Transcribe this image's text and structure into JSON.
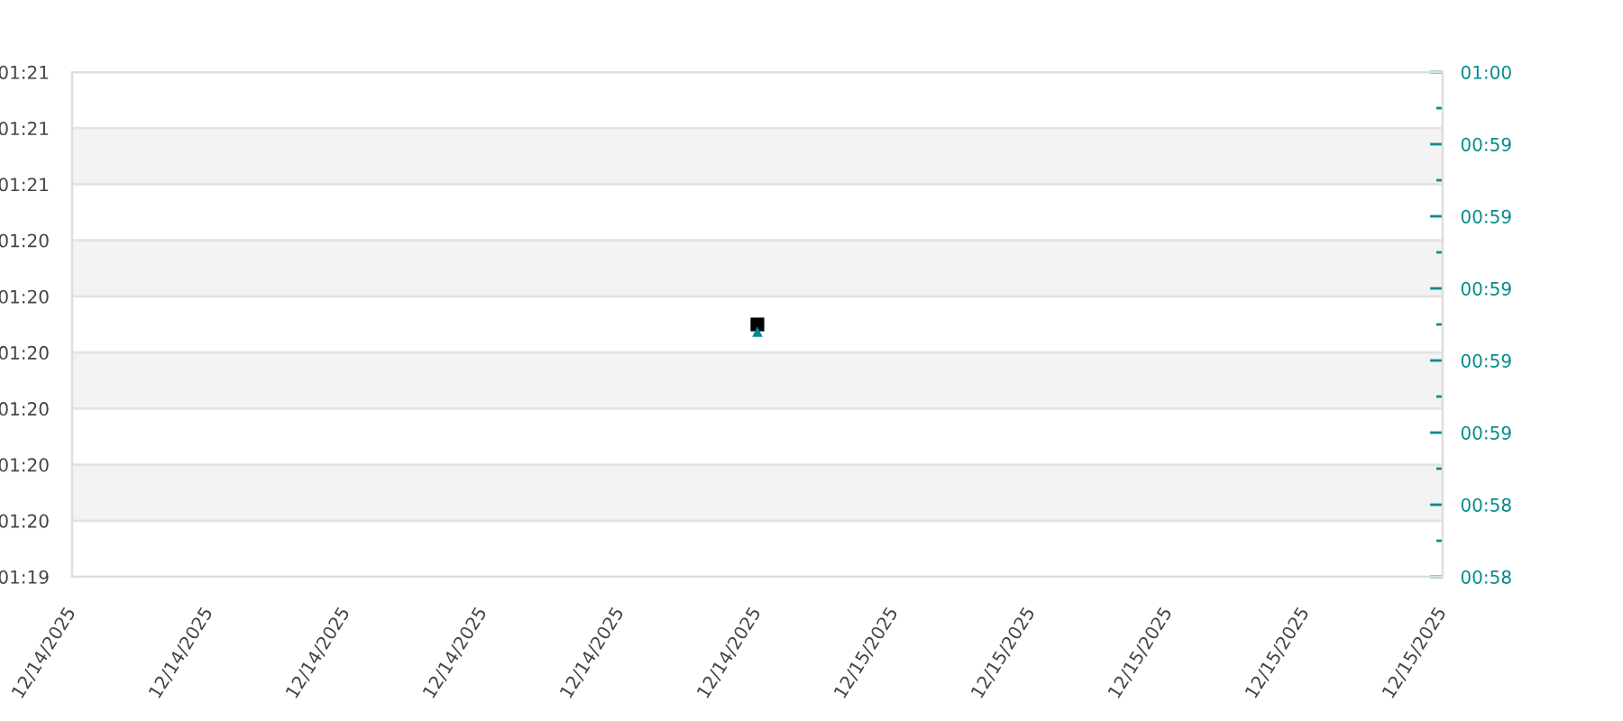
{
  "chart_data": {
    "type": "scatter",
    "x": [
      "2025-12-14T23:30"
    ],
    "series": [
      {
        "color": "#000000",
        "marker": "square",
        "values": [
          80.12
        ]
      },
      {
        "color": "#008b8b",
        "marker": "triangle",
        "axis": "y2",
        "values": [
          58.88
        ]
      }
    ],
    "xlim": [
      "2025-12-14T18:30",
      "2025-12-15T04:30"
    ],
    "xticks": [
      {
        "value": "2025-12-14T18:30",
        "label": "12/14/2025"
      },
      {
        "value": "2025-12-14T19:30",
        "label": "12/14/2025"
      },
      {
        "value": "2025-12-14T20:30",
        "label": "12/14/2025"
      },
      {
        "value": "2025-12-14T21:30",
        "label": "12/14/2025"
      },
      {
        "value": "2025-12-14T22:30",
        "label": "12/14/2025"
      },
      {
        "value": "2025-12-14T23:30",
        "label": "12/14/2025"
      },
      {
        "value": "2025-12-15T00:30",
        "label": "12/15/2025"
      },
      {
        "value": "2025-12-15T01:30",
        "label": "12/15/2025"
      },
      {
        "value": "2025-12-15T02:30",
        "label": "12/15/2025"
      },
      {
        "value": "2025-12-15T03:30",
        "label": "12/15/2025"
      },
      {
        "value": "2025-12-15T04:30",
        "label": "12/15/2025"
      }
    ],
    "ylim": [
      79.4,
      80.84
    ],
    "yticks": [
      {
        "value": 79.4,
        "label": "01:19"
      },
      {
        "value": 79.56,
        "label": "01:20"
      },
      {
        "value": 79.72,
        "label": "01:20"
      },
      {
        "value": 79.88,
        "label": "01:20"
      },
      {
        "value": 80.04,
        "label": "01:20"
      },
      {
        "value": 80.2,
        "label": "01:20"
      },
      {
        "value": 80.36,
        "label": "01:20"
      },
      {
        "value": 80.52,
        "label": "01:21"
      },
      {
        "value": 80.68,
        "label": "01:21"
      },
      {
        "value": 80.84,
        "label": "01:21"
      }
    ],
    "y2lim": [
      58.2,
      59.6
    ],
    "y2ticks": [
      {
        "value": 58.2,
        "label": "00:58"
      },
      {
        "value": 58.3,
        "label": null
      },
      {
        "value": 58.4,
        "label": "00:58"
      },
      {
        "value": 58.5,
        "label": null
      },
      {
        "value": 58.6,
        "label": "00:59"
      },
      {
        "value": 58.7,
        "label": null
      },
      {
        "value": 58.8,
        "label": "00:59"
      },
      {
        "value": 58.9,
        "label": null
      },
      {
        "value": 59.0,
        "label": "00:59"
      },
      {
        "value": 59.1,
        "label": null
      },
      {
        "value": 59.2,
        "label": "00:59"
      },
      {
        "value": 59.3,
        "label": null
      },
      {
        "value": 59.4,
        "label": "00:59"
      },
      {
        "value": 59.5,
        "label": null
      },
      {
        "value": 59.6,
        "label": "01:00"
      }
    ],
    "grid": "y",
    "bands": [
      {
        "axis": "y",
        "from": 79.56,
        "to": 79.72,
        "color": "#f3f3f3"
      },
      {
        "axis": "y",
        "from": 79.88,
        "to": 80.04,
        "color": "#f3f3f3"
      },
      {
        "axis": "y",
        "from": 80.2,
        "to": 80.36,
        "color": "#f3f3f3"
      },
      {
        "axis": "y",
        "from": 80.52,
        "to": 80.68,
        "color": "#f3f3f3"
      }
    ]
  }
}
